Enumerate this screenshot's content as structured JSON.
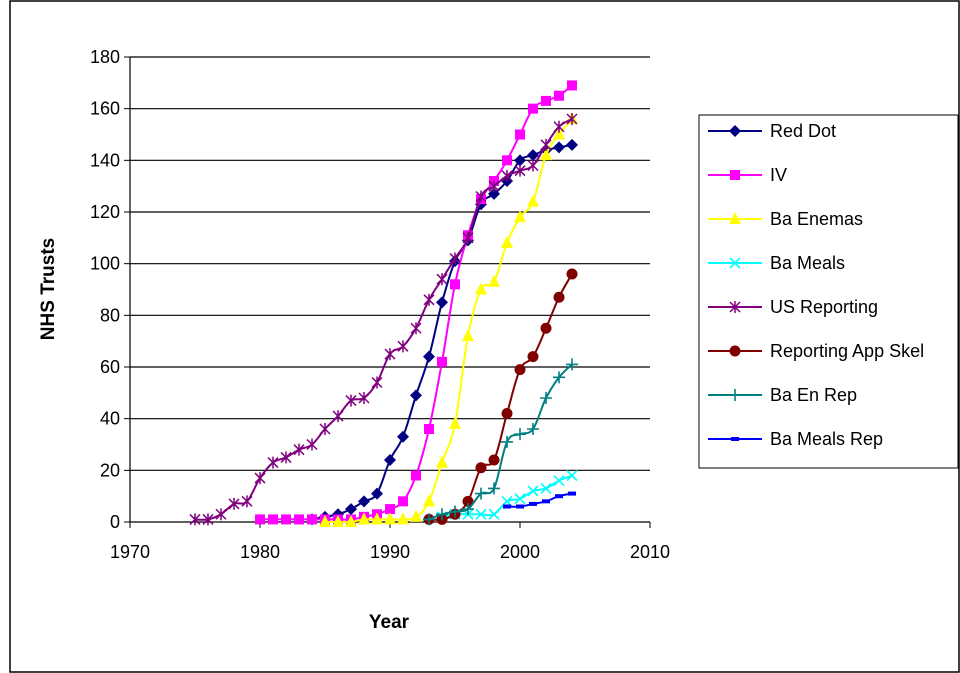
{
  "chart_data": {
    "type": "line",
    "title": "",
    "xlabel": "Year",
    "ylabel": "NHS Trusts",
    "xlim": [
      1970,
      2010
    ],
    "ylim": [
      0,
      180
    ],
    "xticks": [
      1970,
      1980,
      1990,
      2000,
      2010
    ],
    "yticks": [
      0,
      20,
      40,
      60,
      80,
      100,
      120,
      140,
      160,
      180
    ],
    "grid": "horizontal",
    "legend_position": "right",
    "series": [
      {
        "name": "Red Dot",
        "color": "#000080",
        "marker": "diamond",
        "points": [
          [
            1984,
            1
          ],
          [
            1985,
            2
          ],
          [
            1986,
            3
          ],
          [
            1987,
            5
          ],
          [
            1988,
            8
          ],
          [
            1989,
            11
          ],
          [
            1990,
            24
          ],
          [
            1991,
            33
          ],
          [
            1992,
            49
          ],
          [
            1993,
            64
          ],
          [
            1994,
            85
          ],
          [
            1995,
            101
          ],
          [
            1996,
            109
          ],
          [
            1997,
            123
          ],
          [
            1998,
            127
          ],
          [
            1999,
            132
          ],
          [
            2000,
            140
          ],
          [
            2001,
            142
          ],
          [
            2002,
            144
          ],
          [
            2003,
            145
          ],
          [
            2004,
            146
          ]
        ]
      },
      {
        "name": "IV",
        "color": "#FF00FF",
        "marker": "square",
        "points": [
          [
            1980,
            1
          ],
          [
            1981,
            1
          ],
          [
            1982,
            1
          ],
          [
            1983,
            1
          ],
          [
            1984,
            1
          ],
          [
            1985,
            1
          ],
          [
            1986,
            1
          ],
          [
            1987,
            1
          ],
          [
            1988,
            2
          ],
          [
            1989,
            3
          ],
          [
            1990,
            5
          ],
          [
            1991,
            8
          ],
          [
            1992,
            18
          ],
          [
            1993,
            36
          ],
          [
            1994,
            62
          ],
          [
            1995,
            92
          ],
          [
            1996,
            111
          ],
          [
            1997,
            125
          ],
          [
            1998,
            132
          ],
          [
            1999,
            140
          ],
          [
            2000,
            150
          ],
          [
            2001,
            160
          ],
          [
            2002,
            163
          ],
          [
            2003,
            165
          ],
          [
            2004,
            169
          ]
        ]
      },
      {
        "name": "Ba Enemas",
        "color": "#FFFF00",
        "marker": "triangle",
        "points": [
          [
            1985,
            0
          ],
          [
            1986,
            0
          ],
          [
            1987,
            0
          ],
          [
            1988,
            1
          ],
          [
            1989,
            1
          ],
          [
            1990,
            1
          ],
          [
            1991,
            1
          ],
          [
            1992,
            2
          ],
          [
            1993,
            8
          ],
          [
            1994,
            23
          ],
          [
            1995,
            38
          ],
          [
            1996,
            72
          ],
          [
            1997,
            90
          ],
          [
            1998,
            93
          ],
          [
            1999,
            108
          ],
          [
            2000,
            118
          ],
          [
            2001,
            124
          ],
          [
            2002,
            142
          ],
          [
            2003,
            150
          ],
          [
            2004,
            156
          ]
        ]
      },
      {
        "name": "Ba Meals",
        "color": "#00FFFF",
        "marker": "x",
        "points": [
          [
            1994,
            2
          ],
          [
            1995,
            3
          ],
          [
            1996,
            3
          ],
          [
            1997,
            3
          ],
          [
            1998,
            3
          ],
          [
            1999,
            8
          ],
          [
            2000,
            9
          ],
          [
            2001,
            12
          ],
          [
            2002,
            13
          ],
          [
            2003,
            16
          ],
          [
            2004,
            18
          ]
        ]
      },
      {
        "name": "US Reporting",
        "color": "#800080",
        "marker": "star",
        "points": [
          [
            1975,
            1
          ],
          [
            1976,
            1
          ],
          [
            1977,
            3
          ],
          [
            1978,
            7
          ],
          [
            1979,
            8
          ],
          [
            1980,
            17
          ],
          [
            1981,
            23
          ],
          [
            1982,
            25
          ],
          [
            1983,
            28
          ],
          [
            1984,
            30
          ],
          [
            1985,
            36
          ],
          [
            1986,
            41
          ],
          [
            1987,
            47
          ],
          [
            1988,
            48
          ],
          [
            1989,
            54
          ],
          [
            1990,
            65
          ],
          [
            1991,
            68
          ],
          [
            1992,
            75
          ],
          [
            1993,
            86
          ],
          [
            1994,
            94
          ],
          [
            1995,
            102
          ],
          [
            1996,
            110
          ],
          [
            1997,
            126
          ],
          [
            1998,
            130
          ],
          [
            1999,
            134
          ],
          [
            2000,
            136
          ],
          [
            2001,
            138
          ],
          [
            2002,
            146
          ],
          [
            2003,
            153
          ],
          [
            2004,
            156
          ]
        ]
      },
      {
        "name": "Reporting App Skel",
        "color": "#800000",
        "marker": "circle",
        "points": [
          [
            1993,
            1
          ],
          [
            1994,
            1
          ],
          [
            1995,
            3
          ],
          [
            1996,
            8
          ],
          [
            1997,
            21
          ],
          [
            1998,
            24
          ],
          [
            1999,
            42
          ],
          [
            2000,
            59
          ],
          [
            2001,
            64
          ],
          [
            2002,
            75
          ],
          [
            2003,
            87
          ],
          [
            2004,
            96
          ]
        ]
      },
      {
        "name": "Ba En Rep",
        "color": "#008080",
        "marker": "plus",
        "points": [
          [
            1993,
            1
          ],
          [
            1994,
            3
          ],
          [
            1995,
            4
          ],
          [
            1996,
            5
          ],
          [
            1997,
            11
          ],
          [
            1998,
            13
          ],
          [
            1999,
            31
          ],
          [
            2000,
            34
          ],
          [
            2001,
            36
          ],
          [
            2002,
            48
          ],
          [
            2003,
            56
          ],
          [
            2004,
            61
          ]
        ]
      },
      {
        "name": "Ba Meals Rep",
        "color": "#0000FF",
        "marker": "dash",
        "points": [
          [
            1999,
            6
          ],
          [
            2000,
            6
          ],
          [
            2001,
            7
          ],
          [
            2002,
            8
          ],
          [
            2003,
            10
          ],
          [
            2004,
            11
          ]
        ]
      }
    ]
  }
}
